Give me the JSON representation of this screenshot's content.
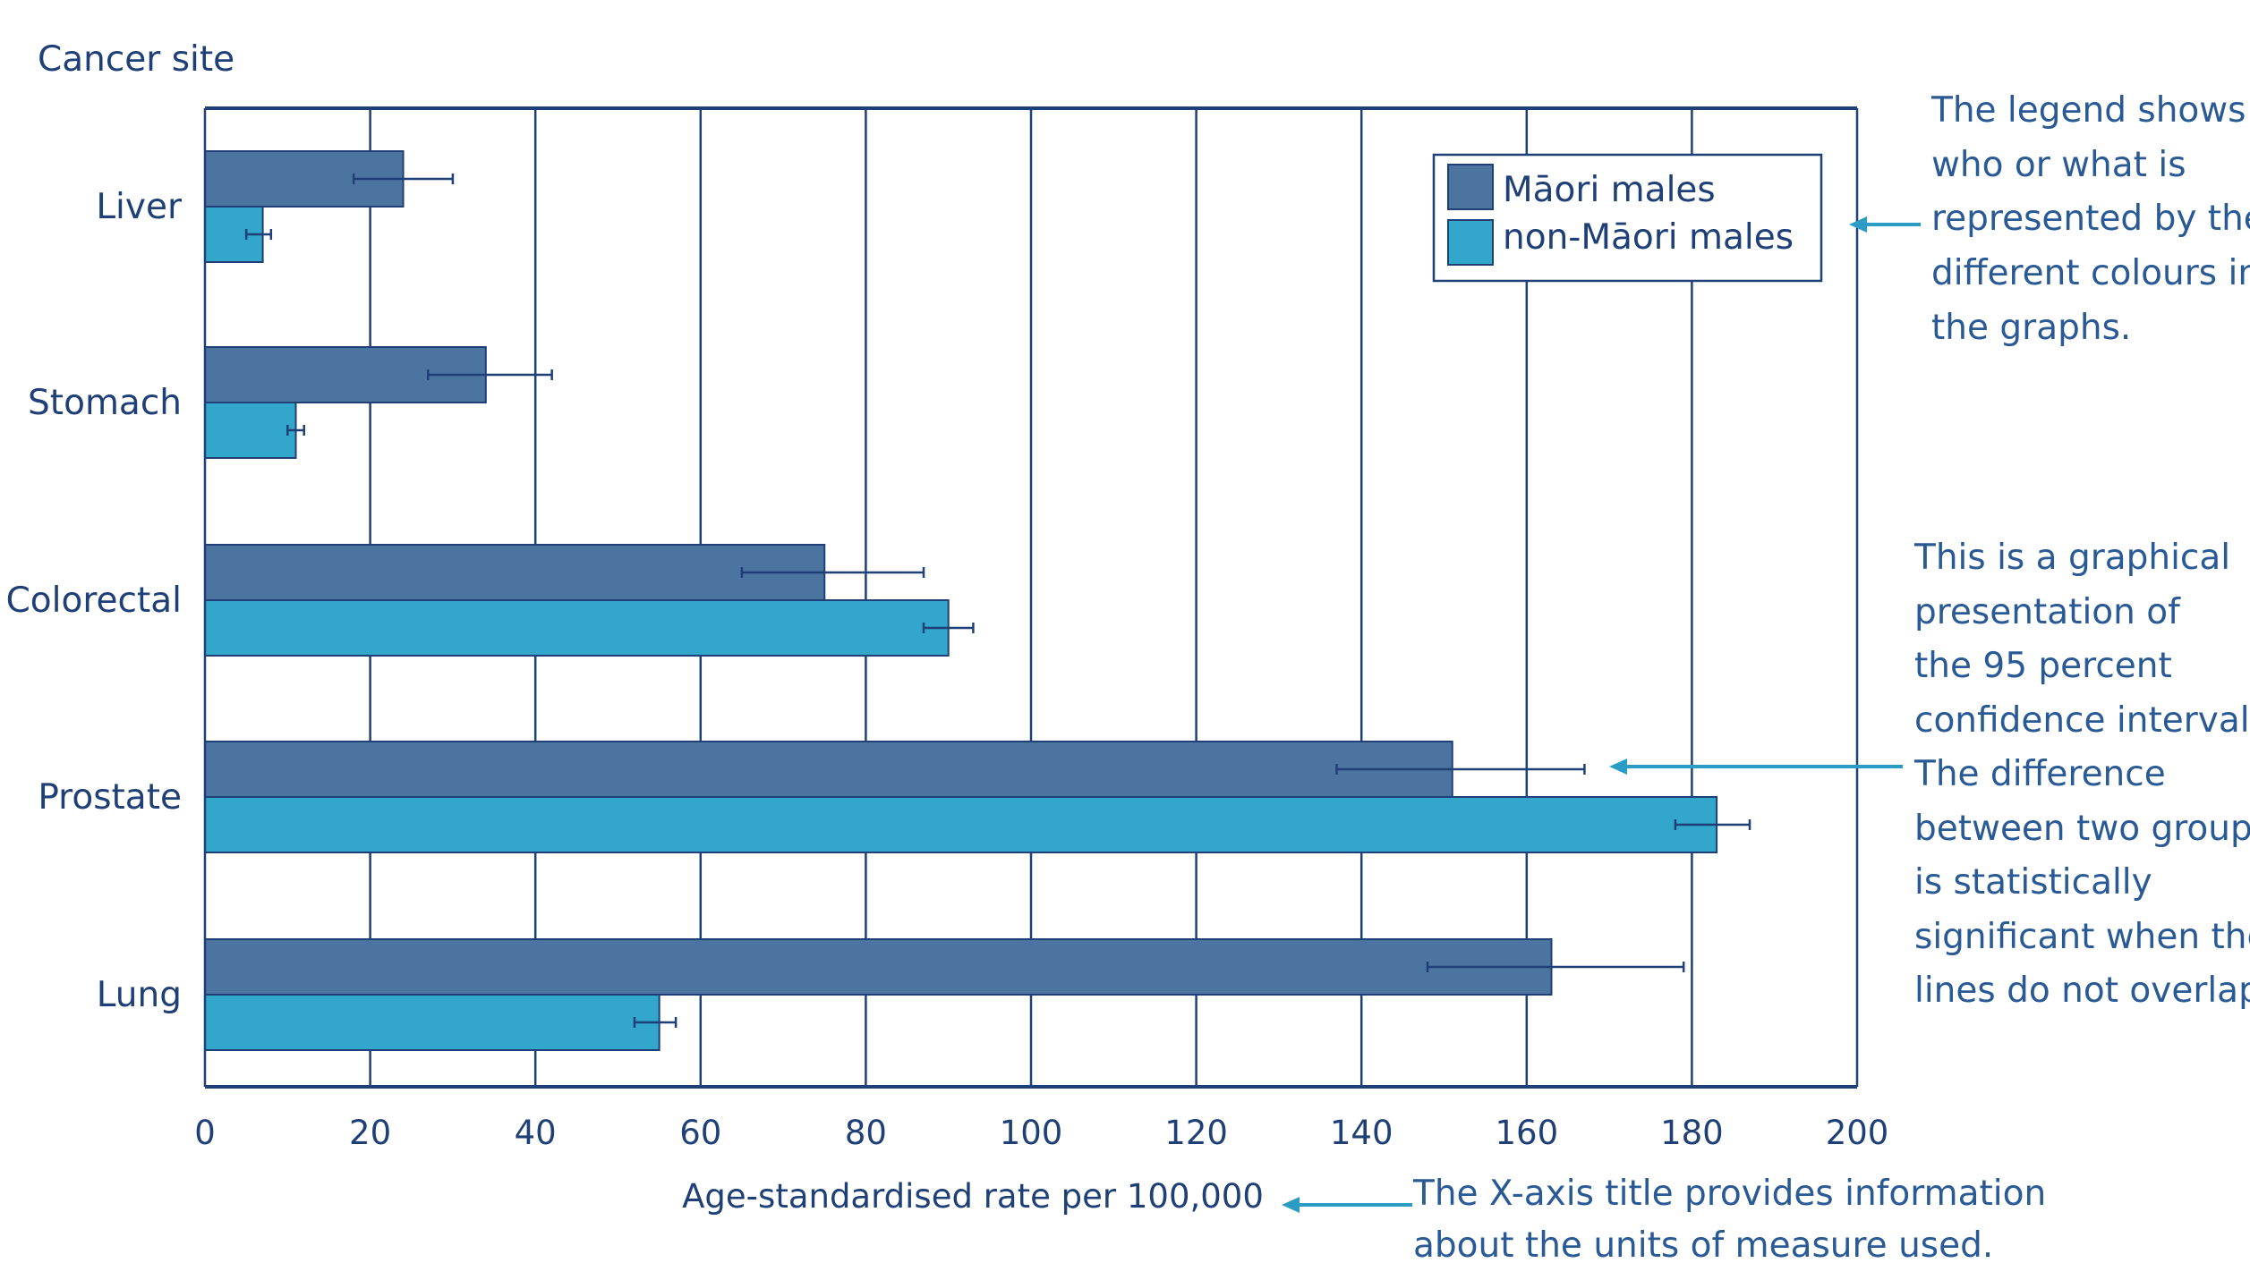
{
  "chart_data": {
    "type": "bar",
    "orientation": "horizontal",
    "title": "",
    "ylabel": "Cancer site",
    "xlabel": "Age-standardised rate per 100,000",
    "categories": [
      "Liver",
      "Stomach",
      "Colorectal",
      "Prostate",
      "Lung"
    ],
    "xlim": [
      0,
      200
    ],
    "x_ticks": [
      "0",
      "20",
      "40",
      "60",
      "80",
      "100",
      "120",
      "140",
      "160",
      "180",
      "200"
    ],
    "grid": "vertical",
    "legend_position": "top-right",
    "series": [
      {
        "name": "Māori males",
        "color": "#4b74a1",
        "values": [
          24,
          34,
          75,
          151,
          163
        ],
        "ci_low": [
          18,
          27,
          65,
          137,
          148
        ],
        "ci_high": [
          30,
          42,
          87,
          167,
          179
        ]
      },
      {
        "name": "non-Māori males",
        "color": "#32a6cb",
        "values": [
          7,
          11,
          90,
          183,
          55
        ],
        "ci_low": [
          5,
          10,
          87,
          178,
          52
        ],
        "ci_high": [
          8,
          12,
          93,
          187,
          57
        ]
      }
    ]
  },
  "annotations": {
    "legend_note": [
      "The legend shows",
      "who or  what is",
      "represented by the",
      "different colours in",
      "the graphs."
    ],
    "ci_note": [
      "This is a graphical",
      "presentation of",
      "the 95 percent",
      "confidence interval.",
      "The difference",
      "between two groups",
      "is statistically",
      "significant when the",
      "lines do not overlap."
    ],
    "axis_note": [
      "The X-axis title provides information",
      "about the units of measure used."
    ]
  },
  "colors": {
    "text": "#1f3f77",
    "annotation_text": "#2a5a95",
    "axis": "#1f3f77",
    "arrow": "#2b9cc4",
    "bar_border": "#1f3f77"
  }
}
